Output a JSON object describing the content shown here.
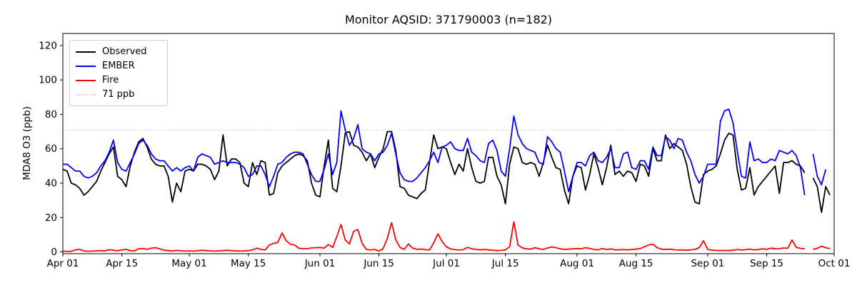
{
  "chart_data": {
    "type": "line",
    "title": "Monitor AQSID: 371790003 (n=182)",
    "xlabel": "",
    "ylabel": "MDA8 O3 (ppb)",
    "n_label": "n=182",
    "grid": false,
    "legend_position": "upper left",
    "legend": [
      "Observed",
      "EMBER",
      "Fire",
      "71 ppb"
    ],
    "ylim": [
      -1,
      127
    ],
    "yticks": [
      0,
      20,
      40,
      60,
      80,
      100,
      120
    ],
    "x_axis_note": "daily values, Apr 01 through Sep 30; day 177 (Sep 25) missing",
    "xticks": [
      {
        "label": "Apr 01",
        "day": 0
      },
      {
        "label": "Apr 15",
        "day": 14
      },
      {
        "label": "May 01",
        "day": 30
      },
      {
        "label": "May 15",
        "day": 44
      },
      {
        "label": "Jun 01",
        "day": 61
      },
      {
        "label": "Jun 15",
        "day": 75
      },
      {
        "label": "Jul 01",
        "day": 91
      },
      {
        "label": "Jul 15",
        "day": 105
      },
      {
        "label": "Aug 01",
        "day": 122
      },
      {
        "label": "Aug 15",
        "day": 136
      },
      {
        "label": "Sep 01",
        "day": 153
      },
      {
        "label": "Sep 15",
        "day": 167
      },
      {
        "label": "Oct 01",
        "day": 183
      }
    ],
    "threshold": {
      "label": "71 ppb",
      "value": 71,
      "color": "#d3d3d3",
      "style": "dotted"
    },
    "series": [
      {
        "name": "Observed",
        "color": "#000000",
        "values": [
          48,
          47,
          40,
          39,
          37,
          33,
          35,
          38,
          41,
          47,
          52,
          57,
          61,
          44,
          42,
          38,
          50,
          58,
          64,
          66,
          61,
          54,
          51,
          50,
          50,
          44,
          29,
          40,
          35,
          47,
          48,
          47,
          51,
          51,
          50,
          48,
          42,
          47,
          68,
          50,
          54,
          54,
          52,
          40,
          38,
          52,
          45,
          53,
          52,
          33,
          34,
          46,
          50,
          52,
          54,
          56,
          57,
          56,
          53,
          40,
          33,
          32,
          50,
          65,
          37,
          35,
          50,
          69,
          70,
          62,
          61,
          58,
          53,
          57,
          49,
          55,
          60,
          70,
          70,
          59,
          38,
          37,
          33,
          32,
          31,
          34,
          36,
          52,
          68,
          60,
          61,
          60,
          52,
          45,
          51,
          47,
          60,
          49,
          41,
          40,
          41,
          55,
          55,
          44,
          39,
          28,
          51,
          61,
          60,
          52,
          51,
          52,
          51,
          44,
          52,
          62,
          55,
          49,
          48,
          36,
          28,
          44,
          50,
          49,
          36,
          45,
          57,
          49,
          39,
          49,
          62,
          45,
          47,
          44,
          47,
          46,
          41,
          51,
          50,
          44,
          60,
          53,
          53,
          68,
          60,
          63,
          61,
          59,
          51,
          38,
          29,
          28,
          45,
          47,
          48,
          50,
          57,
          65,
          69,
          68,
          48,
          36,
          37,
          49,
          33,
          38,
          41,
          44,
          47,
          50,
          34,
          52,
          52,
          53,
          51,
          50,
          46,
          null,
          43,
          38,
          23,
          38,
          33
        ]
      },
      {
        "name": "EMBER",
        "color": "#0000ff",
        "values": [
          51,
          51,
          49,
          47,
          47,
          44,
          43,
          44,
          46,
          50,
          53,
          58,
          65,
          52,
          48,
          47,
          52,
          57,
          63,
          65,
          62,
          57,
          54,
          53,
          53,
          50,
          47,
          49,
          47,
          49,
          50,
          47,
          55,
          57,
          56,
          55,
          51,
          52,
          53,
          52,
          52,
          52,
          51,
          49,
          44,
          45,
          50,
          50,
          45,
          38,
          44,
          51,
          52,
          55,
          57,
          58,
          58,
          57,
          51,
          45,
          41,
          41,
          48,
          57,
          45,
          52,
          82,
          71,
          62,
          66,
          74,
          60,
          58,
          57,
          53,
          57,
          58,
          62,
          69,
          57,
          46,
          42,
          41,
          41,
          43,
          46,
          49,
          53,
          58,
          52,
          61,
          62,
          64,
          60,
          59,
          59,
          66,
          58,
          56,
          53,
          52,
          63,
          65,
          59,
          47,
          44,
          60,
          79,
          68,
          63,
          60,
          59,
          58,
          52,
          51,
          67,
          64,
          60,
          58,
          47,
          35,
          44,
          52,
          52,
          50,
          56,
          58,
          53,
          52,
          55,
          60,
          49,
          49,
          57,
          58,
          49,
          48,
          53,
          53,
          48,
          61,
          56,
          56,
          67,
          65,
          60,
          66,
          65,
          58,
          53,
          45,
          40,
          44,
          51,
          51,
          51,
          76,
          82,
          83,
          75,
          59,
          44,
          43,
          64,
          53,
          54,
          52,
          52,
          54,
          53,
          59,
          58,
          57,
          59,
          56,
          49,
          33,
          null,
          57,
          44,
          39,
          48,
          null
        ]
      },
      {
        "name": "Fire",
        "color": "#ff0000",
        "values": [
          0.5,
          0.3,
          0.4,
          1.2,
          1.5,
          0.6,
          0.4,
          0.5,
          0.6,
          0.8,
          0.6,
          1.3,
          1.0,
          0.7,
          1.2,
          1.5,
          0.8,
          0.6,
          1.8,
          2.0,
          1.5,
          2.2,
          2.5,
          1.8,
          1.0,
          0.8,
          0.6,
          0.9,
          0.7,
          0.5,
          0.6,
          0.5,
          0.7,
          1.0,
          0.8,
          0.6,
          0.5,
          0.6,
          0.8,
          1.0,
          0.8,
          0.6,
          0.5,
          0.6,
          0.8,
          1.2,
          2.2,
          1.5,
          1.2,
          4.0,
          5.0,
          5.5,
          11.0,
          6.5,
          4.5,
          4.0,
          2.1,
          1.9,
          1.9,
          2.3,
          2.5,
          2.6,
          2.2,
          4.3,
          2.6,
          9.0,
          16.0,
          7.0,
          4.6,
          12.0,
          13.0,
          5.0,
          1.5,
          1.1,
          1.5,
          0.5,
          2.0,
          8.0,
          17.0,
          7.0,
          2.6,
          1.5,
          4.6,
          2.2,
          1.5,
          1.7,
          1.3,
          1.1,
          5.3,
          10.5,
          6.0,
          3.0,
          1.7,
          1.3,
          1.1,
          1.3,
          2.7,
          1.8,
          1.5,
          1.2,
          1.4,
          1.2,
          1.0,
          0.8,
          0.9,
          1.2,
          3.0,
          17.5,
          4.0,
          2.3,
          1.8,
          1.6,
          2.5,
          1.8,
          1.5,
          2.3,
          2.9,
          2.5,
          1.8,
          1.5,
          1.6,
          1.8,
          2.0,
          1.8,
          2.5,
          2.0,
          1.5,
          1.2,
          2.0,
          1.4,
          1.8,
          1.2,
          1.2,
          1.4,
          1.2,
          1.4,
          1.6,
          2.0,
          3.0,
          4.0,
          4.5,
          2.5,
          1.6,
          1.4,
          1.6,
          1.3,
          1.1,
          1.2,
          1.0,
          1.2,
          1.5,
          2.5,
          6.5,
          1.5,
          1.0,
          0.9,
          0.8,
          0.9,
          0.8,
          1.0,
          1.4,
          1.1,
          1.3,
          1.6,
          1.2,
          1.4,
          1.8,
          1.5,
          2.2,
          1.8,
          1.9,
          2.3,
          2.1,
          7.0,
          2.7,
          2.1,
          1.8,
          null,
          1.5,
          2.1,
          3.3,
          2.5,
          1.9
        ]
      }
    ]
  }
}
